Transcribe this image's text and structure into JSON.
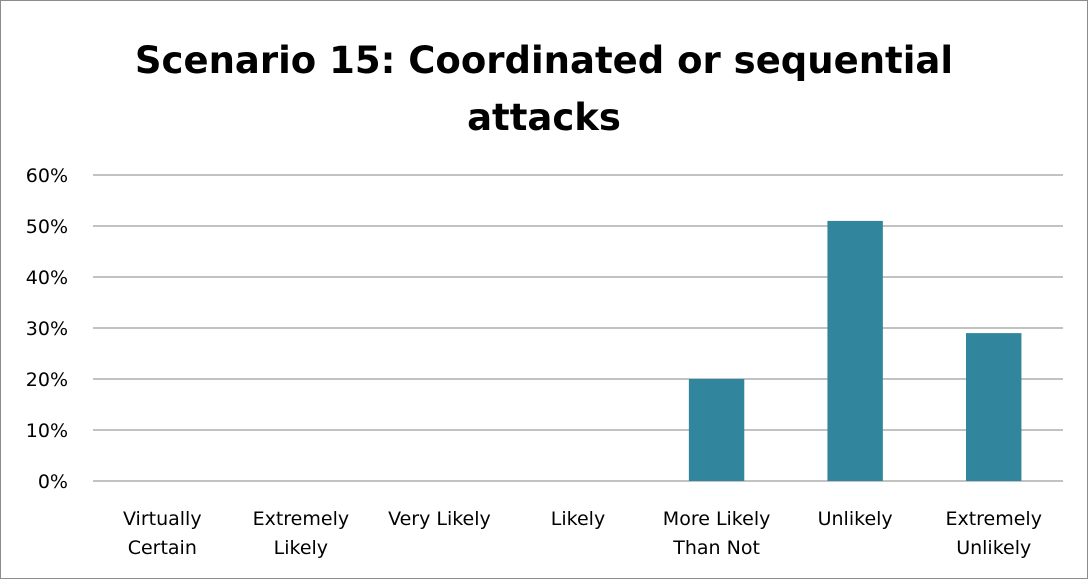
{
  "chart_data": {
    "type": "bar",
    "title_lines": [
      "Scenario 15: Coordinated or sequential",
      "attacks"
    ],
    "categories": [
      [
        "Virtually",
        "Certain"
      ],
      [
        "Extremely",
        "Likely"
      ],
      [
        "Very Likely"
      ],
      [
        "Likely"
      ],
      [
        "More Likely",
        "Than Not"
      ],
      [
        "Unlikely"
      ],
      [
        "Extremely",
        "Unlikely"
      ]
    ],
    "values": [
      0,
      0,
      0,
      0,
      0.2,
      0.51,
      0.29
    ],
    "ylim": [
      0,
      0.6
    ],
    "yticks": [
      "0%",
      "10%",
      "20%",
      "30%",
      "40%",
      "50%",
      "60%"
    ],
    "xlabel": "",
    "ylabel": "",
    "grid": true,
    "bar_color": "#31859c",
    "grid_color": "#868686"
  }
}
